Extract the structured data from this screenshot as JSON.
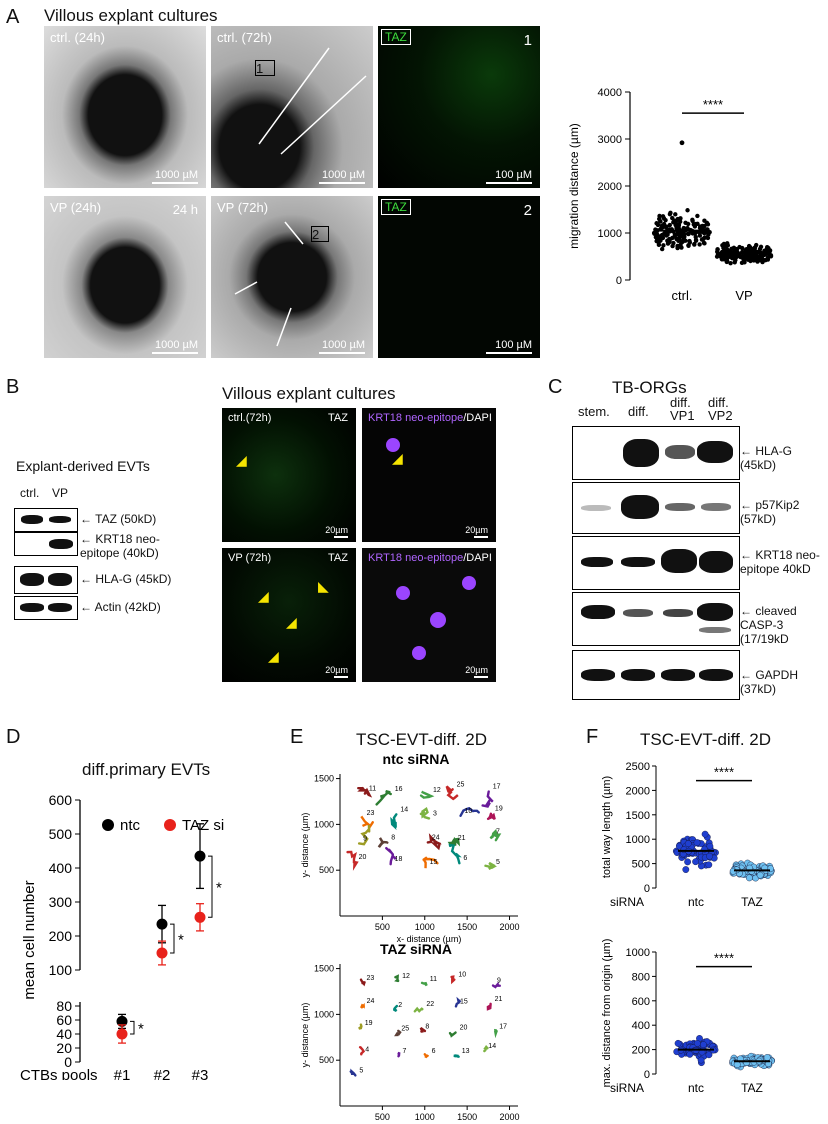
{
  "panelA": {
    "letter": "A",
    "title": "Villous explant cultures",
    "images": [
      {
        "label": "ctrl. (24h)",
        "scalebar": "1000 µM"
      },
      {
        "label": "ctrl. (72h)",
        "scalebar": "1000 µM",
        "inset": "1"
      },
      {
        "label": "TAZ",
        "number": "1",
        "scalebar": "100 µM"
      },
      {
        "label": "VP (24h)",
        "extra": "24 h",
        "scalebar": "1000 µM"
      },
      {
        "label": "VP (72h)",
        "scalebar": "1000 µM",
        "inset": "2"
      },
      {
        "label": "TAZ",
        "number": "2",
        "scalebar": "100 µM"
      }
    ],
    "chart": {
      "ylabel": "migration distance (µm)",
      "yticks": [
        "0",
        "1000",
        "2000",
        "3000",
        "4000"
      ],
      "categories": [
        "ctrl.",
        "VP"
      ],
      "significance": "****"
    }
  },
  "panelB": {
    "letter": "B",
    "blot_title": "Explant-derived EVTs",
    "lanes": [
      "ctrl.",
      "VP"
    ],
    "bands": [
      "TAZ (50kD)",
      "KRT18 neo-epitope (40kD)",
      "HLA-G (45kD)",
      "Actin (42kD)"
    ],
    "title": "Villous explant cultures",
    "images": [
      {
        "label": "ctrl.(72h)",
        "channel": "TAZ",
        "scalebar": "20µm"
      },
      {
        "label_a": "KRT18",
        "label_b": "neo-epitope",
        "label_c": "DAPI",
        "scalebar": "20µm"
      },
      {
        "label": "VP (72h)",
        "channel": "TAZ",
        "scalebar": "20µm"
      },
      {
        "label_a": "KRT18",
        "label_b": "neo-epitope",
        "label_c": "DAPI",
        "scalebar": "20µm"
      }
    ]
  },
  "panelC": {
    "letter": "C",
    "title": "TB-ORGs",
    "lanes": [
      "stem.",
      "diff.",
      "diff. VP1",
      "diff. VP2"
    ],
    "bands": [
      "HLA-G (45kD)",
      "p57Kip2 (57kD)",
      "KRT18 neo-epitope 40kD",
      "cleaved CASP-3 (17/19kD",
      "GAPDH (37kD)"
    ]
  },
  "panelD": {
    "letter": "D",
    "title": "diff.primary EVTs",
    "legend": [
      "ntc",
      "TAZ si"
    ],
    "ylabel": "mean cell number",
    "xlabel": "CTBs pools",
    "yticks_top": [
      "100",
      "200",
      "300",
      "400",
      "500",
      "600"
    ],
    "yticks_bottom": [
      "0",
      "20",
      "40",
      "60",
      "80"
    ],
    "categories": [
      "#1",
      "#2",
      "#3"
    ],
    "sig": "*"
  },
  "panelE": {
    "letter": "E",
    "title": "TSC-EVT-diff. 2D",
    "plot1_title": "ntc siRNA",
    "plot2_title": "TAZ siRNA",
    "xlabel": "x- distance (µm)",
    "ylabel": "y- distance (µm)",
    "xticks": [
      "500",
      "1000",
      "1500",
      "2000"
    ],
    "yticks": [
      "500",
      "1000",
      "1500"
    ],
    "ntc_labels": [
      "11",
      "16",
      "12",
      "25",
      "17",
      "23",
      "14",
      "3",
      "10",
      "19",
      "9",
      "8",
      "24",
      "21",
      "7",
      "20",
      "18",
      "15",
      "6",
      "5"
    ],
    "taz_labels": [
      "23",
      "12",
      "11",
      "10",
      "9",
      "24",
      "2",
      "22",
      "15",
      "21",
      "19",
      "25",
      "8",
      "20",
      "17",
      "4",
      "7",
      "6",
      "13",
      "14",
      "5"
    ]
  },
  "panelF": {
    "letter": "F",
    "title": "TSC-EVT-diff. 2D",
    "top": {
      "ylabel": "total way length (µm)",
      "yticks": [
        "0",
        "500",
        "1000",
        "1500",
        "2000",
        "2500"
      ],
      "sig": "****"
    },
    "bottom": {
      "ylabel": "max. distance from origin (µm)",
      "yticks": [
        "0",
        "200",
        "400",
        "600",
        "800",
        "1000"
      ],
      "sig": "****"
    },
    "row_label": "siRNA",
    "categories": [
      "ntc",
      "TAZ"
    ]
  },
  "colors": {
    "ntc": "#000000",
    "taz": "#e8221b",
    "ntc_blue": "#1f3fd0",
    "taz_blue": "#6ec0f0",
    "green": "#3ddc3d"
  },
  "chart_data": [
    {
      "type": "scatter",
      "title": "",
      "ylabel": "migration distance (µm)",
      "categories": [
        "ctrl.",
        "VP"
      ],
      "ylim": [
        0,
        4000
      ],
      "series": [
        {
          "name": "ctrl.",
          "mean": 1050
        },
        {
          "name": "VP",
          "mean": 560
        }
      ]
    },
    {
      "type": "scatter",
      "title": "diff.primary EVTs",
      "ylabel": "mean cell number",
      "xlabel": "CTBs pools",
      "categories": [
        "#1",
        "#2",
        "#3"
      ],
      "series": [
        {
          "name": "ntc",
          "values": [
            58,
            235,
            435
          ]
        },
        {
          "name": "TAZ si",
          "values": [
            40,
            150,
            255
          ]
        }
      ]
    },
    {
      "type": "scatter",
      "title": "TSC-EVT-diff. 2D",
      "ylabel": "total way length (µm)",
      "categories": [
        "ntc",
        "TAZ"
      ],
      "ylim": [
        0,
        2500
      ],
      "series": [
        {
          "name": "ntc",
          "mean": 760
        },
        {
          "name": "TAZ",
          "mean": 360
        }
      ]
    },
    {
      "type": "scatter",
      "ylabel": "max. distance from origin (µm)",
      "categories": [
        "ntc",
        "TAZ"
      ],
      "ylim": [
        0,
        1000
      ],
      "series": [
        {
          "name": "ntc",
          "mean": 200
        },
        {
          "name": "TAZ",
          "mean": 105
        }
      ]
    }
  ]
}
